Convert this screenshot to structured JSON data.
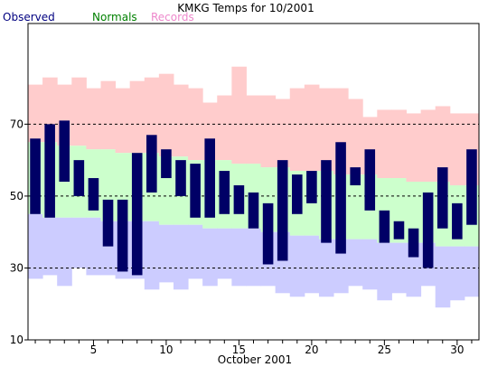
{
  "chart_data": {
    "type": "bar",
    "title": "KMKG Temps for 10/2001",
    "xlabel": "October 2001",
    "ylabel": "",
    "xlim": [
      0.5,
      31.5
    ],
    "ylim": [
      10,
      98
    ],
    "yticks": [
      10,
      30,
      50,
      70
    ],
    "xticks": [
      5,
      10,
      15,
      20,
      25,
      30
    ],
    "grid": "dashed horizontal at 30, 50, 70",
    "legend": [
      "Observed",
      "Normals",
      "Records"
    ],
    "colors": {
      "observed": "#000066",
      "normals": "#ccffcc",
      "records_high": "#ffcccc",
      "records_low": "#ccccff",
      "legend_observed": "#000080",
      "legend_normals": "#008000",
      "legend_records": "#ee88cc"
    },
    "days": [
      1,
      2,
      3,
      4,
      5,
      6,
      7,
      8,
      9,
      10,
      11,
      12,
      13,
      14,
      15,
      16,
      17,
      18,
      19,
      20,
      21,
      22,
      23,
      24,
      25,
      26,
      27,
      28,
      29,
      30,
      31
    ],
    "record_high": [
      81,
      83,
      81,
      83,
      80,
      82,
      80,
      82,
      83,
      84,
      81,
      80,
      76,
      78,
      86,
      78,
      78,
      77,
      80,
      81,
      80,
      80,
      77,
      72,
      74,
      74,
      73,
      74,
      75,
      73,
      73
    ],
    "normal_high": [
      65,
      65,
      64,
      64,
      63,
      63,
      62,
      62,
      62,
      61,
      61,
      60,
      60,
      60,
      59,
      59,
      58,
      58,
      57,
      57,
      57,
      56,
      56,
      56,
      55,
      55,
      54,
      54,
      54,
      53,
      53
    ],
    "normal_low": [
      45,
      44,
      44,
      44,
      44,
      43,
      43,
      43,
      43,
      42,
      42,
      42,
      41,
      41,
      41,
      41,
      40,
      40,
      39,
      39,
      38,
      38,
      38,
      38,
      37,
      37,
      37,
      37,
      36,
      36,
      36
    ],
    "record_low": [
      27,
      28,
      25,
      30,
      28,
      28,
      27,
      27,
      24,
      26,
      24,
      27,
      25,
      27,
      25,
      25,
      25,
      23,
      22,
      23,
      22,
      23,
      25,
      24,
      21,
      23,
      22,
      25,
      19,
      21,
      22
    ],
    "observed_high": [
      66,
      70,
      71,
      60,
      55,
      49,
      49,
      62,
      67,
      63,
      60,
      59,
      66,
      57,
      53,
      51,
      48,
      60,
      56,
      57,
      60,
      65,
      58,
      63,
      46,
      43,
      41,
      51,
      58,
      48,
      63
    ],
    "observed_low": [
      45,
      44,
      54,
      50,
      46,
      36,
      29,
      28,
      51,
      55,
      50,
      44,
      44,
      45,
      45,
      41,
      31,
      32,
      45,
      48,
      37,
      34,
      53,
      46,
      37,
      38,
      33,
      30,
      41,
      38,
      42
    ]
  }
}
